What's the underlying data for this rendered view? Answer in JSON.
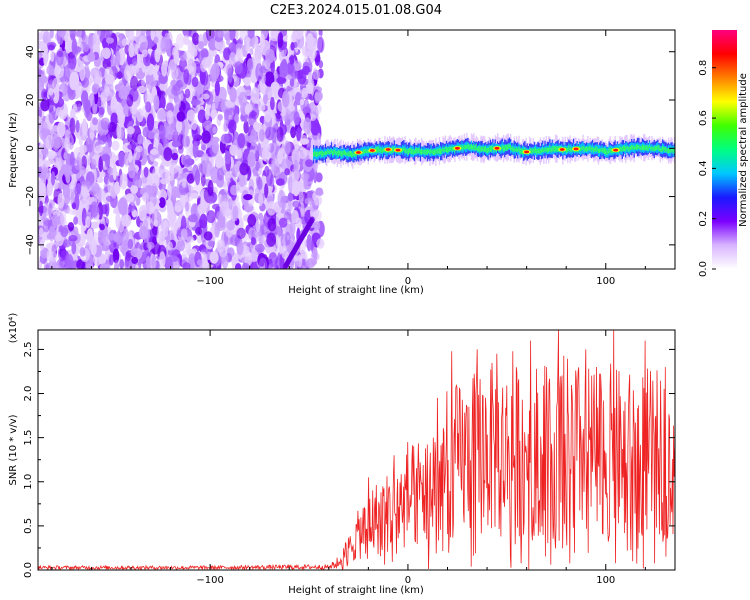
{
  "title": "C2E3.2024.015.01.08.G04",
  "chart_data": [
    {
      "type": "heatmap",
      "xlabel": "Height of straight line (km)",
      "ylabel": "Frequency (Hz)",
      "xlim": [
        -187,
        135
      ],
      "ylim": [
        -50,
        49
      ],
      "x_ticks": [
        -100,
        0,
        100
      ],
      "y_ticks": [
        -40,
        -20,
        0,
        20,
        40
      ],
      "noise_region_x": [
        -187,
        -44
      ],
      "signal_band": {
        "x_range": [
          -48,
          135
        ],
        "center_hz": [
          [
            -48,
            -2.5
          ],
          [
            -40,
            -1.5
          ],
          [
            -30,
            -2.5
          ],
          [
            -20,
            -1.0
          ],
          [
            -10,
            -0.5
          ],
          [
            0,
            -1.0
          ],
          [
            10,
            -1.5
          ],
          [
            20,
            -0.5
          ],
          [
            30,
            0.5
          ],
          [
            40,
            -0.5
          ],
          [
            50,
            0.5
          ],
          [
            60,
            -1.5
          ],
          [
            70,
            -0.5
          ],
          [
            80,
            -0.5
          ],
          [
            90,
            0.0
          ],
          [
            100,
            -1.5
          ],
          [
            110,
            0.0
          ],
          [
            120,
            0.5
          ],
          [
            135,
            -1.0
          ]
        ],
        "width_hz": 5,
        "peak_x": [
          -25,
          -18,
          -10,
          -5,
          25,
          45,
          60,
          78,
          85,
          105
        ]
      },
      "colorbar": {
        "label": "Normalized spectral amplitude",
        "range": [
          0.0,
          0.95
        ],
        "ticks": [
          "0.0",
          "0.2",
          "0.4",
          "0.6",
          "0.8"
        ],
        "colors": [
          "#ffffff",
          "#d8b4ff",
          "#7a00ff",
          "#1a1aff",
          "#00c8ff",
          "#00ff80",
          "#40ff00",
          "#ffff00",
          "#ff8000",
          "#ff0000",
          "#ff0080"
        ]
      },
      "grid": false
    },
    {
      "type": "line",
      "xlabel": "Height of straight line (km)",
      "ylabel": "SNR (10 * v/v)",
      "y_scale_label": "(x10⁴)",
      "xlim": [
        -187,
        135
      ],
      "ylim": [
        0,
        2.72
      ],
      "x_ticks": [
        -100,
        0,
        100
      ],
      "y_ticks": [
        "0.0",
        "0.5",
        "1.0",
        "1.5",
        "2.0",
        "2.5"
      ],
      "series": [
        {
          "color": "#ee2222",
          "envelope": [
            [
              -187,
              0.03
            ],
            [
              -100,
              0.03
            ],
            [
              -40,
              0.04
            ],
            [
              -34,
              0.15
            ],
            [
              -25,
              0.55
            ],
            [
              -20,
              0.75
            ],
            [
              -10,
              0.9
            ],
            [
              0,
              1.1
            ],
            [
              10,
              1.3
            ],
            [
              20,
              1.65
            ],
            [
              30,
              1.75
            ],
            [
              40,
              1.9
            ],
            [
              50,
              1.85
            ],
            [
              60,
              1.9
            ],
            [
              70,
              1.9
            ],
            [
              80,
              1.95
            ],
            [
              90,
              1.85
            ],
            [
              100,
              1.9
            ],
            [
              110,
              1.8
            ],
            [
              120,
              1.85
            ],
            [
              135,
              1.75
            ]
          ],
          "peaks": [
            [
              -20,
              1.05
            ],
            [
              -7,
              1.3
            ],
            [
              0,
              1.45
            ],
            [
              15,
              1.95
            ],
            [
              22,
              2.48
            ],
            [
              35,
              2.5
            ],
            [
              45,
              2.45
            ],
            [
              53,
              2.48
            ],
            [
              62,
              2.6
            ],
            [
              70,
              2.3
            ],
            [
              76,
              2.72
            ],
            [
              90,
              2.5
            ],
            [
              104,
              2.72
            ],
            [
              120,
              2.6
            ],
            [
              130,
              2.3
            ]
          ]
        }
      ],
      "grid": false
    }
  ]
}
